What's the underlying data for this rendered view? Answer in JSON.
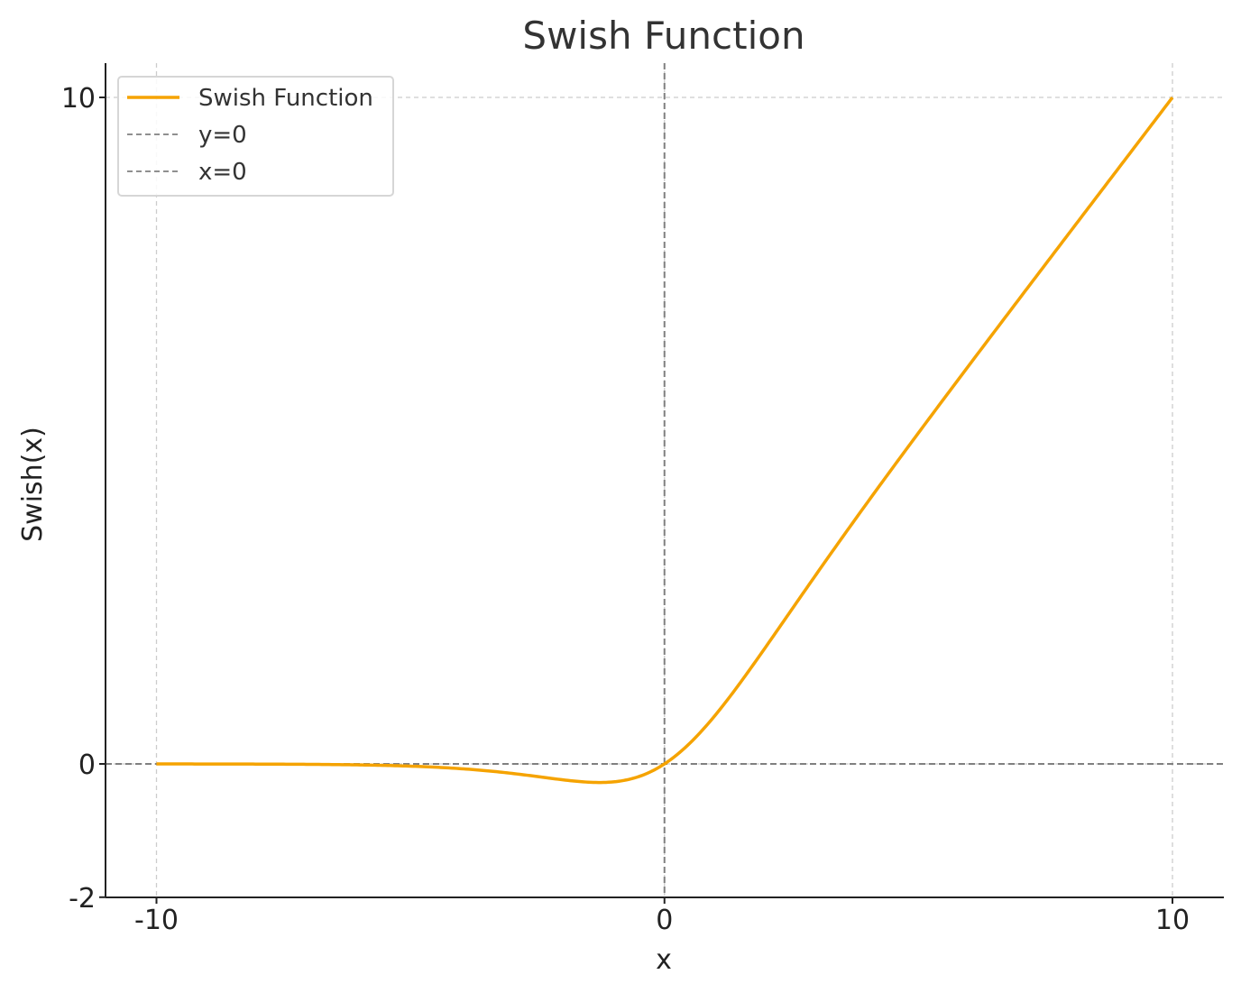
{
  "chart_data": {
    "type": "line",
    "title": "Swish Function",
    "xlabel": "x",
    "ylabel": "Swish(x)",
    "xlim": [
      -11,
      11
    ],
    "ylim": [
      -2,
      11
    ],
    "xticks": [
      -10,
      0,
      10
    ],
    "yticks": [
      -2,
      0,
      10
    ],
    "xtick_labels": [
      "-10",
      "0",
      "10"
    ],
    "ytick_labels": [
      "-2",
      "0",
      "10"
    ],
    "grid": true,
    "legend_position": "top-left",
    "series": [
      {
        "name": "Swish Function",
        "color": "#f5a300",
        "style": "solid",
        "function": "x * sigmoid(x)",
        "x": [
          -10,
          -8,
          -6,
          -5,
          -4,
          -3,
          -2,
          -1.5,
          -1.28,
          -1,
          -0.5,
          0,
          0.5,
          1,
          1.5,
          2,
          3,
          4,
          5,
          6,
          8,
          10
        ],
        "y": [
          0.0,
          -0.003,
          -0.015,
          -0.033,
          -0.072,
          -0.142,
          -0.238,
          -0.274,
          -0.278,
          -0.269,
          -0.189,
          0.0,
          0.311,
          0.731,
          1.226,
          1.762,
          2.858,
          3.928,
          4.967,
          5.985,
          7.997,
          10.0
        ]
      },
      {
        "name": "y=0",
        "color": "#808080",
        "style": "dashed",
        "orientation": "horizontal",
        "value": 0
      },
      {
        "name": "x=0",
        "color": "#808080",
        "style": "dashed",
        "orientation": "vertical",
        "value": 0
      }
    ]
  }
}
